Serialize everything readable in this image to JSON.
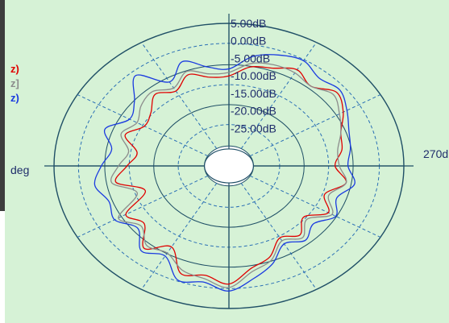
{
  "chart_data": {
    "type": "line",
    "coordinate_system": "polar",
    "unit": "dB",
    "radial_tick_labels": [
      "5.00dB",
      "0.00dB",
      "-5.00dB",
      "-10.00dB",
      "-15.00dB",
      "-20.00dB",
      "-25.00dB"
    ],
    "radial_ticks": [
      5,
      0,
      -5,
      -10,
      -15,
      -20,
      -25
    ],
    "rlim": [
      -30,
      5
    ],
    "angle_labels": [
      {
        "text": "270d",
        "angle_deg": 270
      },
      {
        "text": "deg",
        "angle_deg": 90
      }
    ],
    "grid": true,
    "legend_placement": "left",
    "angles_deg": [
      0,
      10,
      20,
      30,
      40,
      50,
      60,
      70,
      80,
      90,
      100,
      110,
      120,
      130,
      140,
      150,
      160,
      170,
      180,
      190,
      200,
      210,
      220,
      230,
      240,
      250,
      260,
      270,
      280,
      290,
      300,
      310,
      320,
      330,
      340,
      350
    ],
    "series": [
      {
        "name": "z)",
        "color": "#e00000",
        "values": [
          -2,
          -4,
          -3,
          -9,
          -5,
          -10,
          -8,
          -15,
          -9,
          -12,
          -14,
          -10,
          -13,
          -12,
          -9,
          -11,
          -8,
          -10,
          -10,
          -7,
          -6,
          -4,
          -6,
          -3,
          -5,
          -8,
          -9,
          -11,
          -8,
          -12,
          -9,
          -13,
          -10,
          -12,
          -8,
          -6
        ]
      },
      {
        "name": "z]",
        "color": "#8c8c8c",
        "values": [
          -1,
          -3,
          -4,
          -7,
          -6,
          -9,
          -6,
          -13,
          -8,
          -10,
          -12,
          -9,
          -11,
          -9,
          -8,
          -10,
          -7,
          -9,
          -9,
          -6,
          -5,
          -5,
          -6,
          -4,
          -6,
          -8,
          -10,
          -10,
          -8,
          -11,
          -8,
          -12,
          -9,
          -11,
          -7,
          -5
        ]
      },
      {
        "name": "z)",
        "color": "#1a3be0",
        "values": [
          0,
          -2,
          -1,
          -6,
          -4,
          -8,
          -5,
          -6,
          -4,
          -6,
          -8,
          -5,
          -9,
          -7,
          -2,
          -8,
          -4,
          -7,
          -8,
          -4,
          -2,
          -1,
          -3,
          -2,
          -4,
          -6,
          -7,
          -8,
          -6,
          -9,
          -7,
          -10,
          -8,
          -10,
          -6,
          -3
        ]
      }
    ]
  }
}
